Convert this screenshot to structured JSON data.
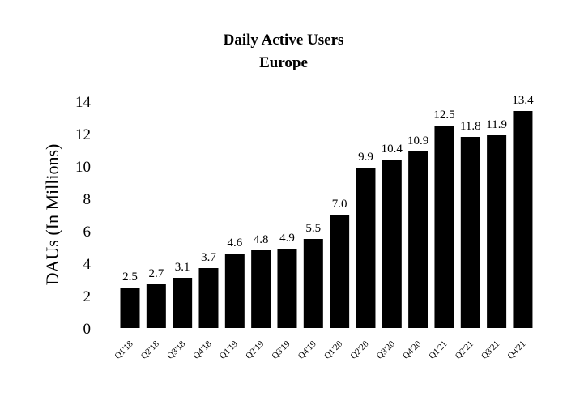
{
  "chart_data": {
    "type": "bar",
    "title": "Daily Active Users",
    "subtitle": "Europe",
    "xlabel": "",
    "ylabel": "DAUs (In Millions)",
    "ylim": [
      0,
      14
    ],
    "yticks": [
      0,
      2,
      4,
      6,
      8,
      10,
      12,
      14
    ],
    "grid": false,
    "legend": "none",
    "bar_color": "#000000",
    "categories": [
      "Q1'18",
      "Q2'18",
      "Q3'18",
      "Q4'18",
      "Q1'19",
      "Q2'19",
      "Q3'19",
      "Q4'19",
      "Q1'20",
      "Q2'20",
      "Q3'20",
      "Q4'20",
      "Q1'21",
      "Q2'21",
      "Q3'21",
      "Q4'21"
    ],
    "values": [
      2.5,
      2.7,
      3.1,
      3.7,
      4.6,
      4.8,
      4.9,
      5.5,
      7.0,
      9.9,
      10.4,
      10.9,
      12.5,
      11.8,
      11.9,
      13.4
    ],
    "value_labels": [
      "2.5",
      "2.7",
      "3.1",
      "3.7",
      "4.6",
      "4.8",
      "4.9",
      "5.5",
      "7.0",
      "9.9",
      "10.4",
      "10.9",
      "12.5",
      "11.8",
      "11.9",
      "13.4"
    ]
  }
}
